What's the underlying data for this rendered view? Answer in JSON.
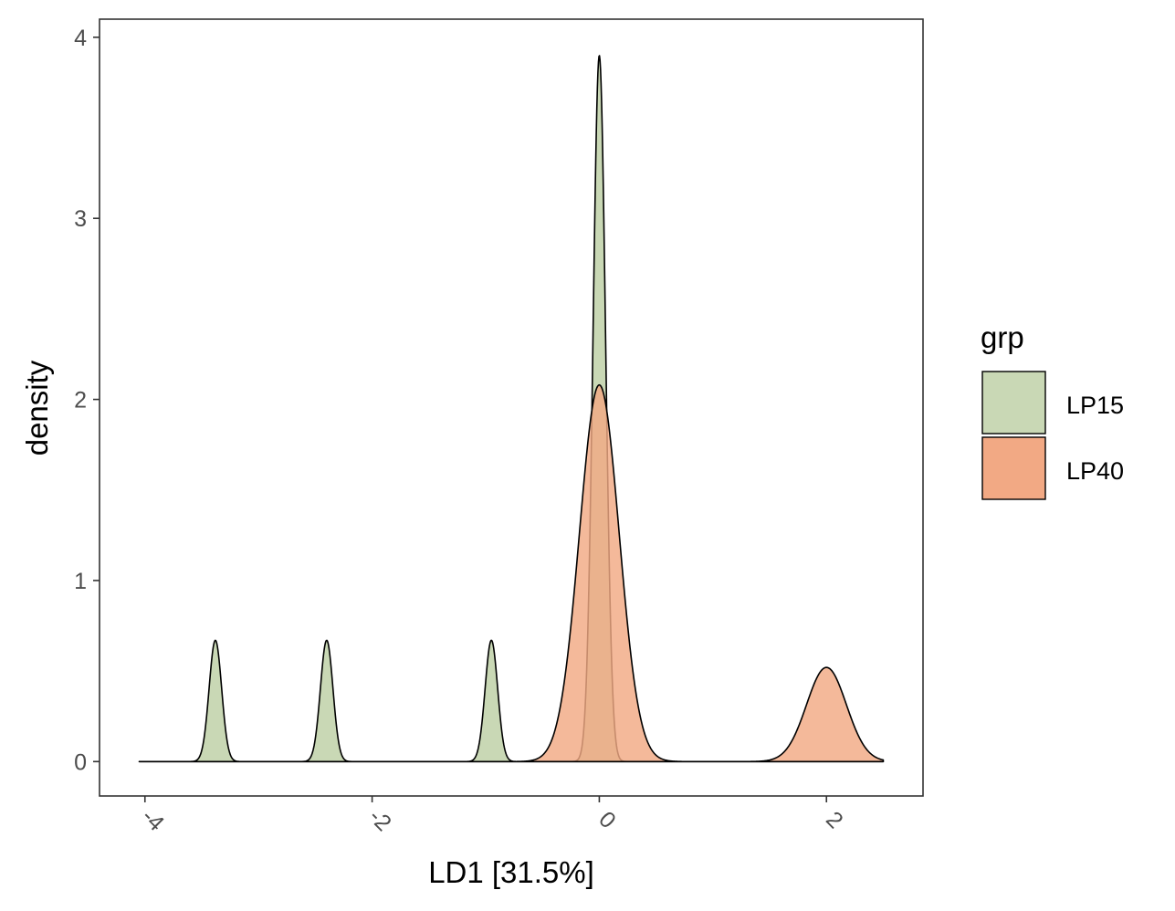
{
  "chart_data": {
    "type": "area",
    "subtype": "density",
    "xlabel": "LD1 [31.5%]",
    "ylabel": "density",
    "xlim": [
      -4.4,
      2.85
    ],
    "ylim": [
      -0.19,
      4.1
    ],
    "x_ticks": [
      -4,
      -2,
      0,
      2
    ],
    "y_ticks": [
      0,
      1,
      2,
      3,
      4
    ],
    "x_tick_labels": [
      "-4",
      "-2",
      "0",
      "2"
    ],
    "y_tick_labels": [
      "0",
      "1",
      "2",
      "3",
      "4"
    ],
    "x_tick_rotation_deg": 45,
    "x_range_drawn": [
      -4.05,
      2.5
    ],
    "grid": false,
    "legend": {
      "title": "grp",
      "position": "right",
      "entries": [
        "LP15",
        "LP40"
      ]
    },
    "series": [
      {
        "name": "LP15",
        "color": "#c9d8b5",
        "components": [
          {
            "center": -3.38,
            "peak": 0.67,
            "width": 0.055
          },
          {
            "center": -2.4,
            "peak": 0.67,
            "width": 0.055
          },
          {
            "center": -0.95,
            "peak": 0.67,
            "width": 0.055
          },
          {
            "center": 0.0,
            "peak": 3.9,
            "width": 0.055
          }
        ]
      },
      {
        "name": "LP40",
        "color": "#f2a984",
        "components": [
          {
            "center": 0.0,
            "peak": 2.08,
            "width": 0.175
          },
          {
            "center": 2.0,
            "peak": 0.52,
            "width": 0.175
          }
        ]
      }
    ]
  }
}
